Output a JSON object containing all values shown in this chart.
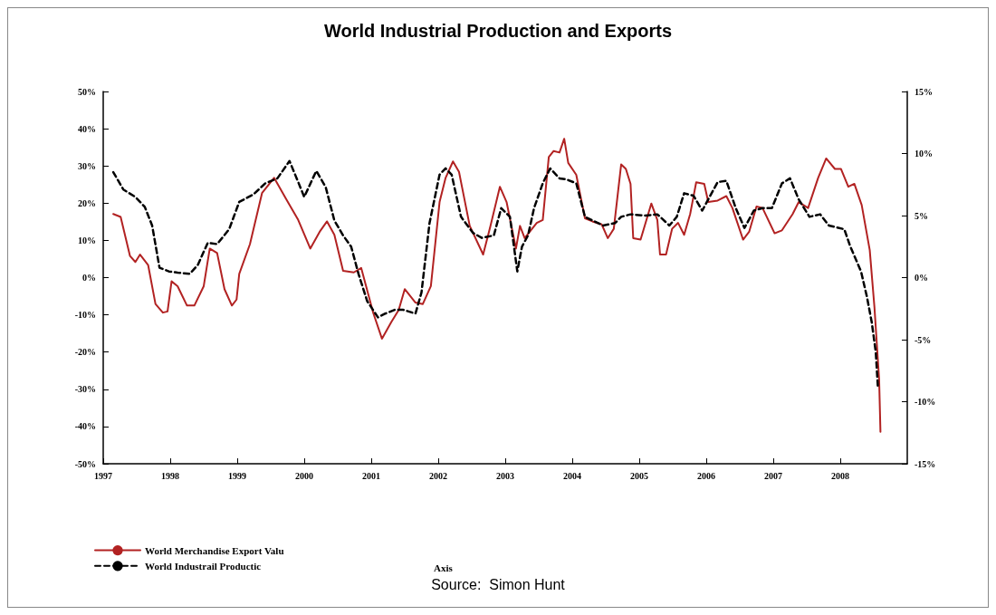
{
  "chart_data": {
    "type": "line",
    "title": "World Industrial Production and Exports",
    "xlim": [
      1997,
      2009
    ],
    "xticks": [
      1997,
      1998,
      1999,
      2000,
      2001,
      2002,
      2003,
      2004,
      2005,
      2006,
      2007,
      2008
    ],
    "ylim": [
      -50,
      50
    ],
    "yticks": [
      {
        "value": -50,
        "label": "-50%"
      },
      {
        "value": -40,
        "label": "-40%"
      },
      {
        "value": -30,
        "label": "-30%"
      },
      {
        "value": -20,
        "label": "-20%"
      },
      {
        "value": -10,
        "label": "-10%"
      },
      {
        "value": 0,
        "label": "0%"
      },
      {
        "value": 10,
        "label": "10%"
      },
      {
        "value": 20,
        "label": "20%"
      },
      {
        "value": 30,
        "label": "30%"
      },
      {
        "value": 40,
        "label": "40%"
      },
      {
        "value": 50,
        "label": "50%"
      }
    ],
    "y2lim": [
      -15,
      15
    ],
    "y2ticks": [
      {
        "value": -15,
        "label": "-15%"
      },
      {
        "value": -10,
        "label": "-10%"
      },
      {
        "value": -5,
        "label": "-5%"
      },
      {
        "value": 0,
        "label": "0%"
      },
      {
        "value": 5,
        "label": "5%"
      },
      {
        "value": 10,
        "label": "10%"
      },
      {
        "value": 15,
        "label": "15%"
      }
    ],
    "grid": false,
    "legend": "bottom left",
    "marker": "none",
    "annotations": [
      "Axis",
      "Source:  Simon Hunt"
    ],
    "series": [
      {
        "name": "World Merchandise Export Valu",
        "color": "#b22222",
        "line_style": "solid",
        "x": [
          1997.15,
          1997.26,
          1997.4,
          1997.48,
          1997.55,
          1997.67,
          1997.78,
          1997.89,
          1997.96,
          1998.02,
          1998.11,
          1998.25,
          1998.36,
          1998.5,
          1998.59,
          1998.7,
          1998.81,
          1998.92,
          1998.99,
          1999.03,
          1999.19,
          1999.37,
          1999.55,
          1999.73,
          1999.91,
          2000.09,
          2000.23,
          2000.34,
          2000.45,
          2000.58,
          2000.74,
          2000.85,
          2001.03,
          2001.16,
          2001.3,
          2001.41,
          2001.5,
          2001.66,
          2001.77,
          2001.89,
          2002.02,
          2002.11,
          2002.22,
          2002.31,
          2002.47,
          2002.67,
          2002.78,
          2002.92,
          2003.02,
          2003.16,
          2003.22,
          2003.29,
          2003.47,
          2003.56,
          2003.65,
          2003.72,
          2003.81,
          2003.88,
          2003.94,
          2004.06,
          2004.19,
          2004.3,
          2004.44,
          2004.53,
          2004.62,
          2004.73,
          2004.8,
          2004.87,
          2004.91,
          2005.02,
          2005.18,
          2005.27,
          2005.31,
          2005.4,
          2005.49,
          2005.58,
          2005.67,
          2005.76,
          2005.85,
          2005.97,
          2006.03,
          2006.17,
          2006.3,
          2006.39,
          2006.55,
          2006.64,
          2006.75,
          2006.84,
          2007.02,
          2007.13,
          2007.29,
          2007.38,
          2007.52,
          2007.67,
          2007.79,
          2007.92,
          2008.01,
          2008.12,
          2008.21,
          2008.32,
          2008.44,
          2008.51,
          2008.58,
          2008.6
        ],
        "values": [
          17.1,
          16.3,
          5.8,
          4.2,
          6.2,
          3.4,
          -7.1,
          -9.4,
          -9.1,
          -1,
          -2.3,
          -7.5,
          -7.5,
          -2.3,
          7.8,
          6.6,
          -3.1,
          -7.5,
          -5.9,
          1,
          9,
          22.7,
          26.8,
          21.1,
          15.5,
          7.8,
          12.3,
          15.1,
          11.5,
          1.8,
          1.4,
          2.6,
          -9.5,
          -16.4,
          -11.9,
          -8.7,
          -3.1,
          -6.7,
          -7.1,
          -2.3,
          20.3,
          26.8,
          31.2,
          28.4,
          13.9,
          6.2,
          13.9,
          24.4,
          20.3,
          7.8,
          13.9,
          10.6,
          14.7,
          15.5,
          32.4,
          34,
          33.6,
          37.3,
          30.8,
          27.6,
          15.9,
          15.1,
          14.3,
          10.6,
          13.1,
          30.4,
          29.2,
          25.2,
          10.6,
          10.2,
          19.9,
          15.5,
          6.2,
          6.2,
          13.1,
          14.7,
          11.5,
          17.1,
          25.6,
          25.2,
          20.3,
          20.7,
          21.9,
          18.7,
          10.2,
          12.3,
          19.1,
          18.7,
          11.9,
          12.7,
          17.1,
          20.3,
          18.7,
          26.8,
          32,
          29.2,
          29.2,
          24.4,
          25.2,
          19.5,
          7.4,
          -7.9,
          -27.3,
          -41.4
        ]
      },
      {
        "name": "World Industrail Productic",
        "color": "#000000",
        "line_style": "dashed",
        "axis": "y2",
        "x": [
          1997.15,
          1997.3,
          1997.48,
          1997.62,
          1997.73,
          1997.84,
          1997.98,
          1998.11,
          1998.29,
          1998.41,
          1998.56,
          1998.7,
          1998.88,
          1999.03,
          1999.24,
          1999.42,
          1999.6,
          1999.78,
          1999.91,
          2000,
          2000.18,
          2000.32,
          2000.45,
          2000.58,
          2000.7,
          2000.81,
          2000.94,
          2001.1,
          2001.21,
          2001.35,
          2001.48,
          2001.66,
          2001.75,
          2001.87,
          2002.02,
          2002.11,
          2002.2,
          2002.34,
          2002.52,
          2002.65,
          2002.83,
          2002.94,
          2003.07,
          2003.16,
          2003.18,
          2003.25,
          2003.34,
          2003.43,
          2003.56,
          2003.67,
          2003.81,
          2003.92,
          2004.06,
          2004.19,
          2004.46,
          2004.64,
          2004.73,
          2004.87,
          2005.09,
          2005.27,
          2005.45,
          2005.56,
          2005.67,
          2005.81,
          2005.94,
          2006.03,
          2006.17,
          2006.3,
          2006.44,
          2006.57,
          2006.71,
          2006.84,
          2006.98,
          2007.13,
          2007.25,
          2007.38,
          2007.54,
          2007.7,
          2007.83,
          2008.06,
          2008.15,
          2008.31,
          2008.4,
          2008.47,
          2008.53,
          2008.56
        ],
        "values": [
          8.5,
          7.1,
          6.5,
          5.7,
          4.2,
          0.8,
          0.5,
          0.4,
          0.3,
          1,
          2.8,
          2.7,
          3.9,
          6.1,
          6.7,
          7.6,
          8,
          9.4,
          7.7,
          6.5,
          8.6,
          7.3,
          4.6,
          3.4,
          2.5,
          0.3,
          -1.9,
          -3.2,
          -2.9,
          -2.6,
          -2.6,
          -2.9,
          -1.2,
          4.4,
          8.3,
          8.8,
          8.3,
          4.9,
          3.6,
          3.2,
          3.4,
          5.6,
          4.9,
          1.3,
          0.5,
          2.5,
          3.4,
          5.6,
          7.6,
          8.8,
          8,
          7.9,
          7.6,
          4.9,
          4.2,
          4.4,
          4.9,
          5.1,
          5,
          5.1,
          4.2,
          4.9,
          6.8,
          6.6,
          5.4,
          6.3,
          7.7,
          7.8,
          5.6,
          4,
          5.4,
          5.6,
          5.6,
          7.6,
          8,
          6.3,
          4.9,
          5.1,
          4.2,
          3.9,
          2.5,
          0.5,
          -1.6,
          -3.6,
          -6,
          -8.7
        ]
      }
    ]
  }
}
